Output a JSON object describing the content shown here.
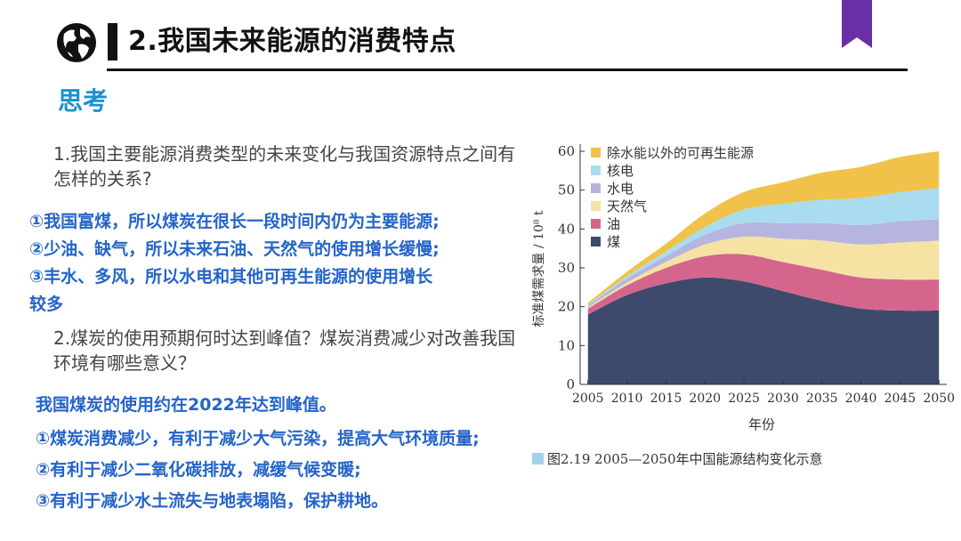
{
  "header": {
    "title": "2.我国未来能源的消费特点",
    "globe_icon": "globe-icon",
    "ribbon_color": "#6a2fa6"
  },
  "subtitle": "思考",
  "q1": "1.我国主要能源消费类型的未来变化与我国资源特点之间有怎样的关系?",
  "answers1": [
    "①我国富煤，所以煤炭在很长一段时间内仍为主要能源;",
    "②少油、缺气，所以未来石油、天然气的使用增长缓慢;",
    "③丰水、多风，所以水电和其他可再生能源的使用增长",
    "较多"
  ],
  "q2": "2.煤炭的使用预期何时达到峰值？煤炭消费减少对改善我国环境有哪些意义？",
  "answers2": [
    "我国煤炭的使用约在2022年达到峰值。",
    "①煤炭消费减少，有利于减少大气污染，提高大气环境质量;",
    "②有利于减少二氧化碳排放，减缓气候变暖;",
    "③有利于减少水土流失与地表塌陷，保护耕地。"
  ],
  "caption": "图2.19   2005—2050年中国能源结构变化示意",
  "caption_color": "#9fd3e6",
  "chart_data": {
    "type": "area",
    "stacked": true,
    "title": "",
    "xlabel": "年份",
    "ylabel": "标准煤需求量 / 10⁸ t",
    "x": [
      2005,
      2010,
      2015,
      2020,
      2025,
      2030,
      2035,
      2040,
      2045,
      2050
    ],
    "xlim": [
      2004,
      2051
    ],
    "ylim": [
      0,
      60
    ],
    "yticks": [
      0,
      10,
      20,
      30,
      40,
      50,
      60
    ],
    "grid": false,
    "legend_position": "top-left",
    "series": [
      {
        "name": "煤",
        "color": "#3e4a6b",
        "values": [
          18,
          23,
          26,
          27.5,
          26.5,
          24,
          21.5,
          19.5,
          19,
          19
        ]
      },
      {
        "name": "油",
        "color": "#d4668d",
        "values": [
          1.5,
          2.5,
          4,
          5.5,
          7,
          7.5,
          8,
          8,
          8,
          8
        ]
      },
      {
        "name": "天然气",
        "color": "#f6e3a4",
        "values": [
          0.3,
          0.7,
          1.5,
          3,
          4.5,
          6,
          7.5,
          8.5,
          9.5,
          10
        ]
      },
      {
        "name": "水电",
        "color": "#b6b5e0",
        "values": [
          0.5,
          1,
          1.5,
          2.5,
          3.5,
          4,
          4.5,
          5,
          5.5,
          5.5
        ]
      },
      {
        "name": "核电",
        "color": "#a9dcef",
        "values": [
          0.2,
          0.6,
          1.2,
          2,
          3.5,
          5,
          6,
          7,
          7.5,
          8
        ]
      },
      {
        "name": "除水能以外的可再生能源",
        "color": "#f0c24a",
        "values": [
          0.5,
          1.2,
          2,
          3.5,
          4.5,
          5.5,
          7,
          8,
          9,
          9.5
        ]
      }
    ],
    "legend_order": [
      "除水能以外的可再生能源",
      "核电",
      "水电",
      "天然气",
      "油",
      "煤"
    ]
  }
}
